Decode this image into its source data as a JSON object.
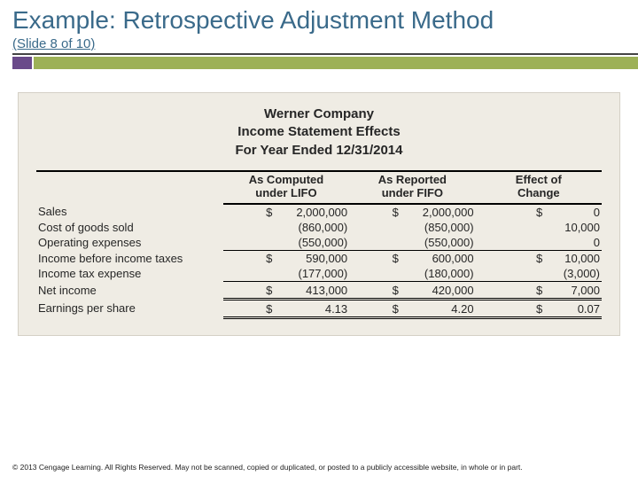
{
  "title": "Example: Retrospective Adjustment Method",
  "subtitle": "(Slide 8 of 10)",
  "panel": {
    "company": "Werner Company",
    "statement": "Income Statement Effects",
    "period": "For Year Ended 12/31/2014",
    "colHeaders": {
      "c1a": "As Computed",
      "c1b": "under LIFO",
      "c2a": "As Reported",
      "c2b": "under FIFO",
      "c3a": "Effect of",
      "c3b": "Change"
    },
    "rows": {
      "sales": {
        "label": "Sales",
        "d1": "$",
        "v1": "2,000,000",
        "d2": "$",
        "v2": "2,000,000",
        "d3": "$",
        "v3": "0"
      },
      "cogs": {
        "label": "Cost of goods sold",
        "d1": "",
        "v1": "(860,000)",
        "d2": "",
        "v2": "(850,000)",
        "d3": "",
        "v3": "10,000"
      },
      "opex": {
        "label": "Operating expenses",
        "d1": "",
        "v1": "(550,000)",
        "d2": "",
        "v2": "(550,000)",
        "d3": "",
        "v3": "0"
      },
      "pretax": {
        "label": "Income before income taxes",
        "d1": "$",
        "v1": "590,000",
        "d2": "$",
        "v2": "600,000",
        "d3": "$",
        "v3": "10,000"
      },
      "tax": {
        "label": "Income tax expense",
        "d1": "",
        "v1": "(177,000)",
        "d2": "",
        "v2": "(180,000)",
        "d3": "",
        "v3": "(3,000)"
      },
      "ni": {
        "label": "Net income",
        "d1": "$",
        "v1": "413,000",
        "d2": "$",
        "v2": "420,000",
        "d3": "$",
        "v3": "7,000"
      },
      "eps": {
        "label": "Earnings per share",
        "d1": "$",
        "v1": "4.13",
        "d2": "$",
        "v2": "4.20",
        "d3": "$",
        "v3": "0.07"
      }
    }
  },
  "footer": "© 2013 Cengage Learning. All Rights Reserved. May not be scanned, copied or duplicated, or posted to a publicly accessible website, in whole or in part.",
  "colors": {
    "titleColor": "#3a6a8a",
    "accentPurple": "#6a4a8a",
    "accentOlive": "#9db157",
    "panelBg": "#efece4"
  }
}
